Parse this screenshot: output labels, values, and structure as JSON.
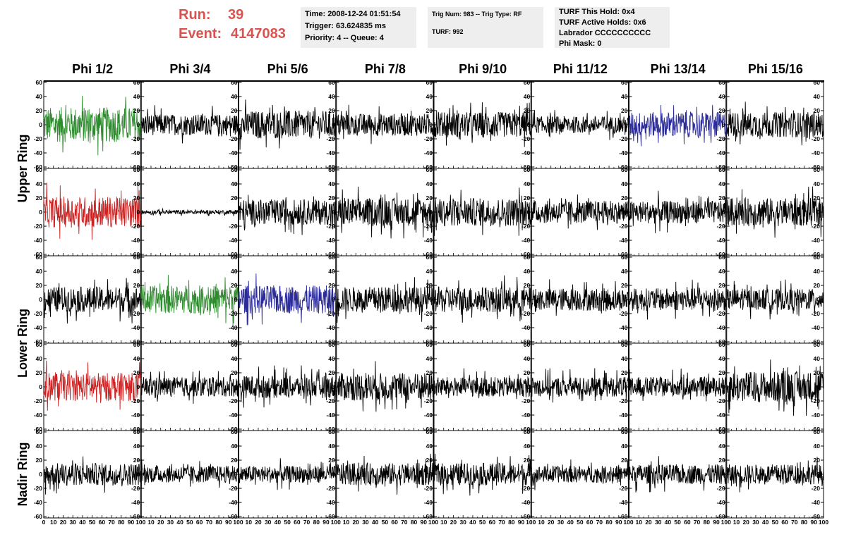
{
  "header": {
    "run_label": "Run:",
    "run_value": "39",
    "event_label": "Event:",
    "event_value": "4147083",
    "accent_color": "#d9534f"
  },
  "info": {
    "time": "Time: 2008-12-24 01:51:54",
    "trigger": "Trigger: 63.624835 ms",
    "priority": "Priority: 4 -- Queue: 4",
    "trig_num": "Trig Num: 983 -- Trig Type: RF",
    "turf": "TURF: 992",
    "turf_hold": "TURF This Hold: 0x4",
    "turf_active": "TURF Active Holds: 0x6",
    "labrador": "Labrador CCCCCCCCCC",
    "phi_mask": "Phi Mask: 0"
  },
  "chart_data": {
    "type": "line",
    "columns": [
      "Phi 1/2",
      "Phi 3/4",
      "Phi 5/6",
      "Phi 7/8",
      "Phi 9/10",
      "Phi 11/12",
      "Phi 13/14",
      "Phi 15/16"
    ],
    "ring_labels": [
      "Upper Ring",
      "Lower Ring",
      "Nadir Ring"
    ],
    "ylim": [
      -60,
      60
    ],
    "yticks": [
      60,
      40,
      20,
      0,
      -20,
      -40,
      -60
    ],
    "xlim": [
      0,
      100
    ],
    "xticks": [
      0,
      10,
      20,
      30,
      40,
      50,
      60,
      70,
      80,
      90,
      100
    ],
    "colors": {
      "black": "#000000",
      "green": "#2e8b2e",
      "red": "#cc2222",
      "blue": "#2b2b99"
    },
    "panel_colors": [
      [
        "green",
        "black",
        "black",
        "black",
        "black",
        "black",
        "blue",
        "black"
      ],
      [
        "red",
        "black",
        "black",
        "black",
        "black",
        "black",
        "black",
        "black"
      ],
      [
        "black",
        "green",
        "blue",
        "black",
        "black",
        "black",
        "black",
        "black"
      ],
      [
        "red",
        "black",
        "black",
        "black",
        "black",
        "black",
        "black",
        "black"
      ],
      [
        "black",
        "black",
        "black",
        "black",
        "black",
        "black",
        "black",
        "black"
      ]
    ],
    "panel_amplitude": [
      [
        25,
        15,
        20,
        16,
        18,
        12,
        18,
        18
      ],
      [
        22,
        3,
        18,
        20,
        20,
        16,
        16,
        20
      ],
      [
        18,
        20,
        20,
        18,
        18,
        16,
        16,
        15
      ],
      [
        20,
        14,
        16,
        20,
        14,
        14,
        14,
        22
      ],
      [
        16,
        12,
        12,
        16,
        16,
        12,
        14,
        14
      ]
    ]
  }
}
